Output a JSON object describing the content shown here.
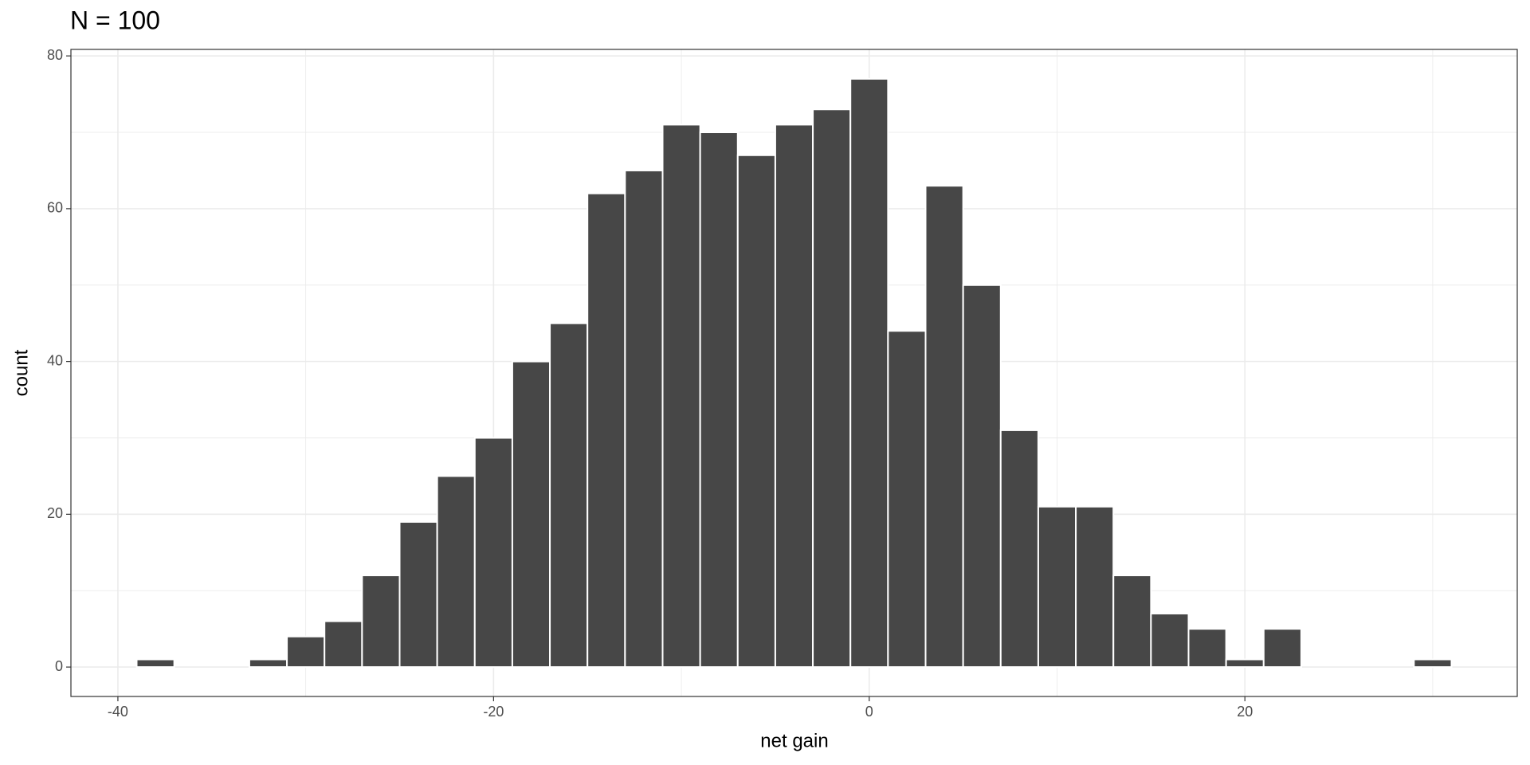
{
  "chart_data": {
    "type": "histogram",
    "title": "N = 100",
    "xlabel": "net gain",
    "ylabel": "count",
    "bins": [
      -39,
      -37,
      -35,
      -33,
      -31,
      -29,
      -27,
      -25,
      -23,
      -21,
      -19,
      -17,
      -15,
      -13,
      -11,
      -9,
      -7,
      -5,
      -3,
      -1,
      1,
      3,
      5,
      7,
      9,
      11,
      13,
      15,
      17,
      19,
      21,
      23,
      25,
      27,
      29,
      31
    ],
    "values": [
      1,
      0,
      0,
      1,
      4,
      6,
      12,
      19,
      25,
      30,
      40,
      45,
      62,
      65,
      71,
      70,
      67,
      71,
      73,
      77,
      44,
      63,
      50,
      31,
      21,
      21,
      12,
      7,
      5,
      1,
      5,
      0,
      0,
      0,
      1
    ],
    "color": "#474747",
    "xlim": [
      -42.5,
      34.5
    ],
    "ylim": [
      -3.85,
      80.85
    ],
    "xticks": [
      -40,
      -20,
      0,
      20
    ],
    "yticks": [
      0,
      20,
      40,
      60,
      80
    ],
    "x_minor_ticks": [
      -30,
      -10,
      10,
      30
    ],
    "y_minor_ticks": [
      10,
      30,
      50,
      70
    ],
    "grid": true
  }
}
